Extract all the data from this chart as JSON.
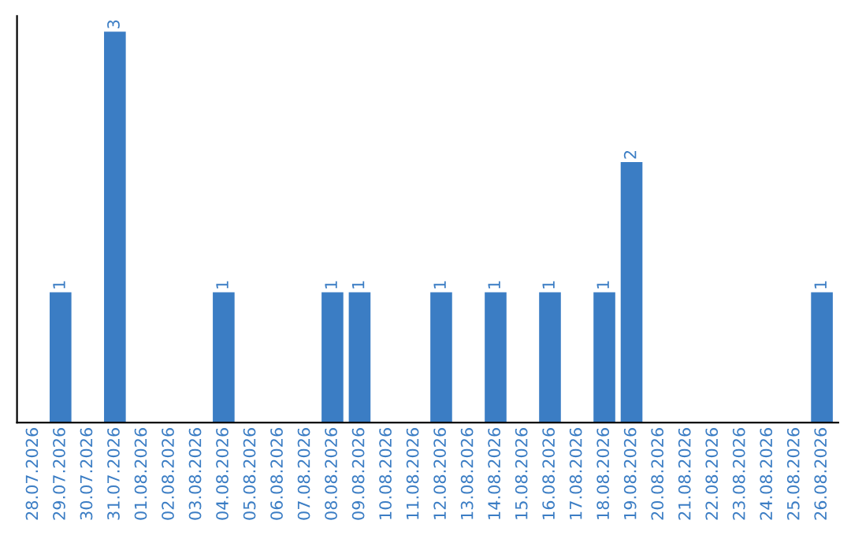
{
  "chart_data": {
    "type": "bar",
    "categories": [
      "28.07.2026",
      "29.07.2026",
      "30.07.2026",
      "31.07.2026",
      "01.08.2026",
      "02.08.2026",
      "03.08.2026",
      "04.08.2026",
      "05.08.2026",
      "06.08.2026",
      "07.08.2026",
      "08.08.2026",
      "09.08.2026",
      "10.08.2026",
      "11.08.2026",
      "12.08.2026",
      "13.08.2026",
      "14.08.2026",
      "15.08.2026",
      "16.08.2026",
      "17.08.2026",
      "18.08.2026",
      "19.08.2026",
      "20.08.2026",
      "21.08.2026",
      "22.08.2026",
      "23.08.2026",
      "24.08.2026",
      "25.08.2026",
      "26.08.2026"
    ],
    "values": [
      0,
      1,
      0,
      3,
      0,
      0,
      0,
      1,
      0,
      0,
      0,
      1,
      1,
      0,
      0,
      1,
      0,
      1,
      0,
      1,
      0,
      1,
      2,
      0,
      0,
      0,
      0,
      0,
      0,
      1
    ],
    "value_labels": [
      null,
      "1",
      null,
      "3",
      null,
      null,
      null,
      "1",
      null,
      null,
      null,
      "1",
      "1",
      null,
      null,
      "1",
      null,
      "1",
      null,
      "1",
      null,
      "1",
      "2",
      null,
      null,
      null,
      null,
      null,
      null,
      "1"
    ],
    "color": "#3b7dc4",
    "tick_labels": "x"
  }
}
